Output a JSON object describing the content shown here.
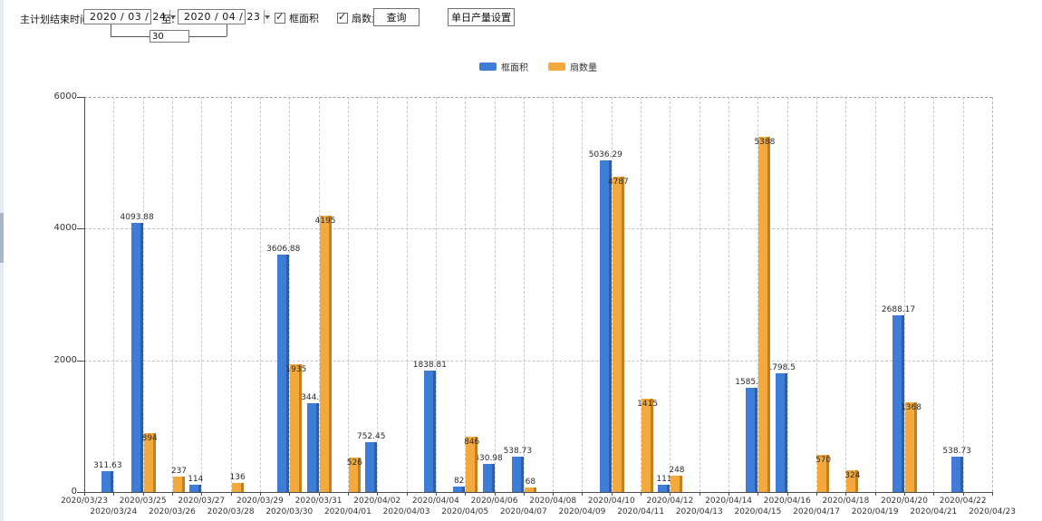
{
  "toolbar": {
    "plan_end_label": "主计划结束时间:",
    "date_from": "2020 / 03 / 24",
    "to_label": "至:",
    "date_to": "2020 / 04 / 23",
    "days_value": "30",
    "checkbox_area": {
      "label": "框面积",
      "checked": true
    },
    "checkbox_fan": {
      "label": "扇数量",
      "checked": true
    },
    "query_button": "查询",
    "daily_output_button": "单日产量设置"
  },
  "legend": [
    {
      "label": "框面积",
      "color": "#3d7dd8"
    },
    {
      "label": "扇数量",
      "color": "#f3a93c"
    }
  ],
  "chart_data": {
    "type": "bar",
    "title": "",
    "xlabel": "",
    "ylabel": "",
    "ylim": [
      0,
      6000
    ],
    "yticks": [
      0,
      2000,
      4000,
      6000
    ],
    "grid": true,
    "legend_position": "top",
    "categories": [
      "2020/03/23",
      "2020/03/24",
      "2020/03/25",
      "2020/03/26",
      "2020/03/27",
      "2020/03/28",
      "2020/03/29",
      "2020/03/30",
      "2020/03/31",
      "2020/04/01",
      "2020/04/02",
      "2020/04/03",
      "2020/04/04",
      "2020/04/05",
      "2020/04/06",
      "2020/04/07",
      "2020/04/08",
      "2020/04/09",
      "2020/04/10",
      "2020/04/11",
      "2020/04/12",
      "2020/04/13",
      "2020/04/14",
      "2020/04/15",
      "2020/04/16",
      "2020/04/17",
      "2020/04/18",
      "2020/04/19",
      "2020/04/20",
      "2020/04/21",
      "2020/04/22",
      "2020/04/23"
    ],
    "series": [
      {
        "name": "框面积",
        "color": "#3d7dd8",
        "edge_color": "#2e5fa3",
        "values": [
          null,
          311.63,
          4093.88,
          null,
          114,
          null,
          null,
          3606.88,
          1344.95,
          null,
          752.45,
          null,
          1838.81,
          82,
          430.98,
          538.73,
          null,
          null,
          5036.29,
          null,
          111,
          null,
          null,
          1585.96,
          1798.5,
          null,
          null,
          null,
          2688.17,
          null,
          538.73,
          null
        ]
      },
      {
        "name": "扇数量",
        "color": "#f3a93c",
        "edge_color": "#c47f1e",
        "values": [
          null,
          null,
          894,
          237,
          null,
          136,
          null,
          1935,
          4195,
          526,
          null,
          null,
          null,
          846,
          null,
          68,
          null,
          null,
          4787,
          1415,
          248,
          null,
          null,
          5388,
          null,
          570,
          324,
          null,
          1368,
          null,
          null,
          null
        ]
      }
    ]
  }
}
